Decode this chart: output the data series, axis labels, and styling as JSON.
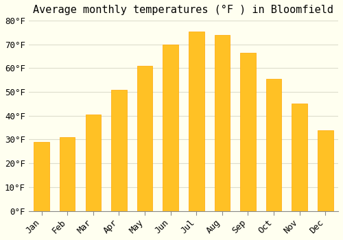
{
  "title": "Average monthly temperatures (°F ) in Bloomfield",
  "months": [
    "Jan",
    "Feb",
    "Mar",
    "Apr",
    "May",
    "Jun",
    "Jul",
    "Aug",
    "Sep",
    "Oct",
    "Nov",
    "Dec"
  ],
  "values": [
    29,
    31,
    40.5,
    51,
    61,
    70,
    75.5,
    74,
    66.5,
    55.5,
    45,
    34
  ],
  "bar_color": "#FFC125",
  "bar_edge_color": "#FFA500",
  "ylim": [
    0,
    80
  ],
  "yticks": [
    0,
    10,
    20,
    30,
    40,
    50,
    60,
    70,
    80
  ],
  "ytick_labels": [
    "0°F",
    "10°F",
    "20°F",
    "30°F",
    "40°F",
    "50°F",
    "60°F",
    "70°F",
    "80°F"
  ],
  "background_color": "#FFFFF0",
  "grid_color": "#DDDDCC",
  "title_fontsize": 11,
  "tick_fontsize": 9,
  "font_family": "monospace"
}
